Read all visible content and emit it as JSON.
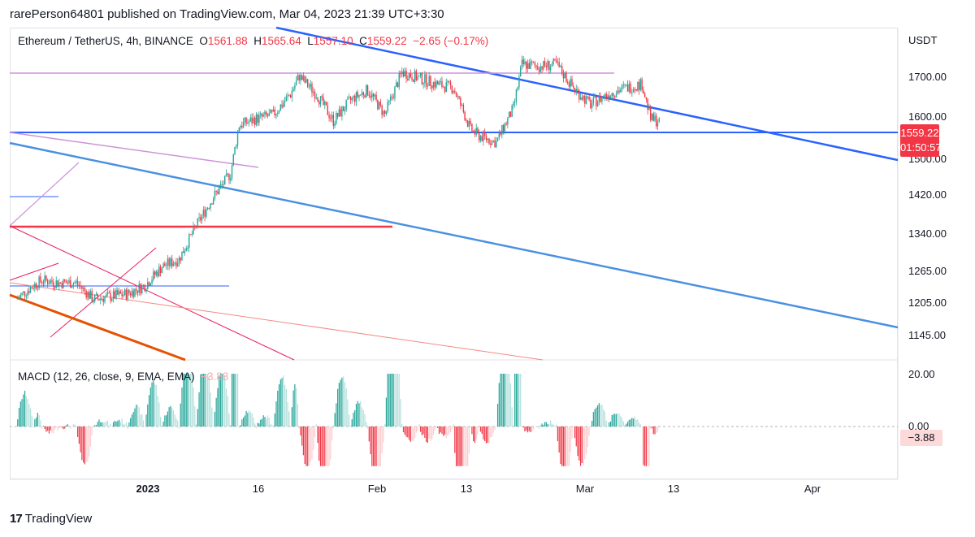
{
  "header": {
    "text": "rarePerson64801 published on TradingView.com, Mar 04, 2023 21:39 UTC+3:30"
  },
  "legend": {
    "symbol": "Ethereum / TetherUS, 4h, BINANCE",
    "o_label": "O",
    "o_value": "1561.88",
    "h_label": "H",
    "h_value": "1565.64",
    "l_label": "L",
    "l_value": "1557.10",
    "c_label": "C",
    "c_value": "1559.22",
    "change": "−2.65 (−0.17%)"
  },
  "macd_legend": {
    "label": "MACD (12, 26, close, 9, EMA, EMA)",
    "value": "−3.88"
  },
  "axis": {
    "unit": "USDT",
    "price_ticks": [
      "1700.00",
      "1600.00",
      "1500.00",
      "1420.00",
      "1340.00",
      "1265.00",
      "1205.00",
      "1145.00"
    ],
    "macd_ticks": [
      "20.00",
      "0.00"
    ],
    "x_ticks": [
      "2023",
      "16",
      "Feb",
      "13",
      "Mar",
      "13",
      "Apr"
    ]
  },
  "price_badge": {
    "price": "1559.22",
    "countdown": "01:50:57"
  },
  "macd_badge": {
    "value": "−3.88"
  },
  "footer": {
    "brand": "TradingView",
    "logo": "tradingview-logo-icon"
  },
  "colors": {
    "up": "#26a69a",
    "down": "#f23645",
    "blue_line": "#2962ff",
    "light_blue_line": "#4a90e2",
    "purple_line": "#ce93d8",
    "pink_line": "#e91e63",
    "orange_line": "#e65100"
  },
  "chart_data": {
    "type": "candlestick",
    "symbol": "Ethereum / TetherUS",
    "interval": "4h",
    "exchange": "BINANCE",
    "y_scale": "log",
    "ylim": [
      1100,
      1780
    ],
    "last": {
      "open": 1561.88,
      "high": 1565.64,
      "low": 1557.1,
      "close": 1559.22,
      "change": -2.65,
      "change_pct": -0.17
    },
    "price_path": [
      [
        "2022-12-19",
        1190
      ],
      [
        "2022-12-21",
        1215
      ],
      [
        "2022-12-22",
        1225
      ],
      [
        "2022-12-24",
        1220
      ],
      [
        "2022-12-26",
        1220
      ],
      [
        "2022-12-28",
        1190
      ],
      [
        "2022-12-30",
        1195
      ],
      [
        "2023-01-01",
        1200
      ],
      [
        "2023-01-03",
        1215
      ],
      [
        "2023-01-05",
        1250
      ],
      [
        "2023-01-07",
        1265
      ],
      [
        "2023-01-09",
        1330
      ],
      [
        "2023-01-11",
        1390
      ],
      [
        "2023-01-13",
        1440
      ],
      [
        "2023-01-14",
        1550
      ],
      [
        "2023-01-16",
        1565
      ],
      [
        "2023-01-18",
        1575
      ],
      [
        "2023-01-20",
        1625
      ],
      [
        "2023-01-21",
        1670
      ],
      [
        "2023-01-23",
        1625
      ],
      [
        "2023-01-25",
        1560
      ],
      [
        "2023-01-27",
        1610
      ],
      [
        "2023-01-29",
        1635
      ],
      [
        "2023-01-31",
        1575
      ],
      [
        "2023-02-02",
        1680
      ],
      [
        "2023-02-04",
        1665
      ],
      [
        "2023-02-06",
        1650
      ],
      [
        "2023-02-08",
        1640
      ],
      [
        "2023-02-10",
        1540
      ],
      [
        "2023-02-11",
        1525
      ],
      [
        "2023-02-13",
        1510
      ],
      [
        "2023-02-15",
        1590
      ],
      [
        "2023-02-16",
        1700
      ],
      [
        "2023-02-18",
        1695
      ],
      [
        "2023-02-20",
        1700
      ],
      [
        "2023-02-22",
        1640
      ],
      [
        "2023-02-24",
        1600
      ],
      [
        "2023-02-26",
        1625
      ],
      [
        "2023-02-28",
        1640
      ],
      [
        "2023-03-02",
        1650
      ],
      [
        "2023-03-03",
        1565
      ],
      [
        "2023-03-04",
        1559.22
      ]
    ],
    "macd_histogram_range": [
      -15,
      20
    ],
    "macd_last": -3.88
  }
}
